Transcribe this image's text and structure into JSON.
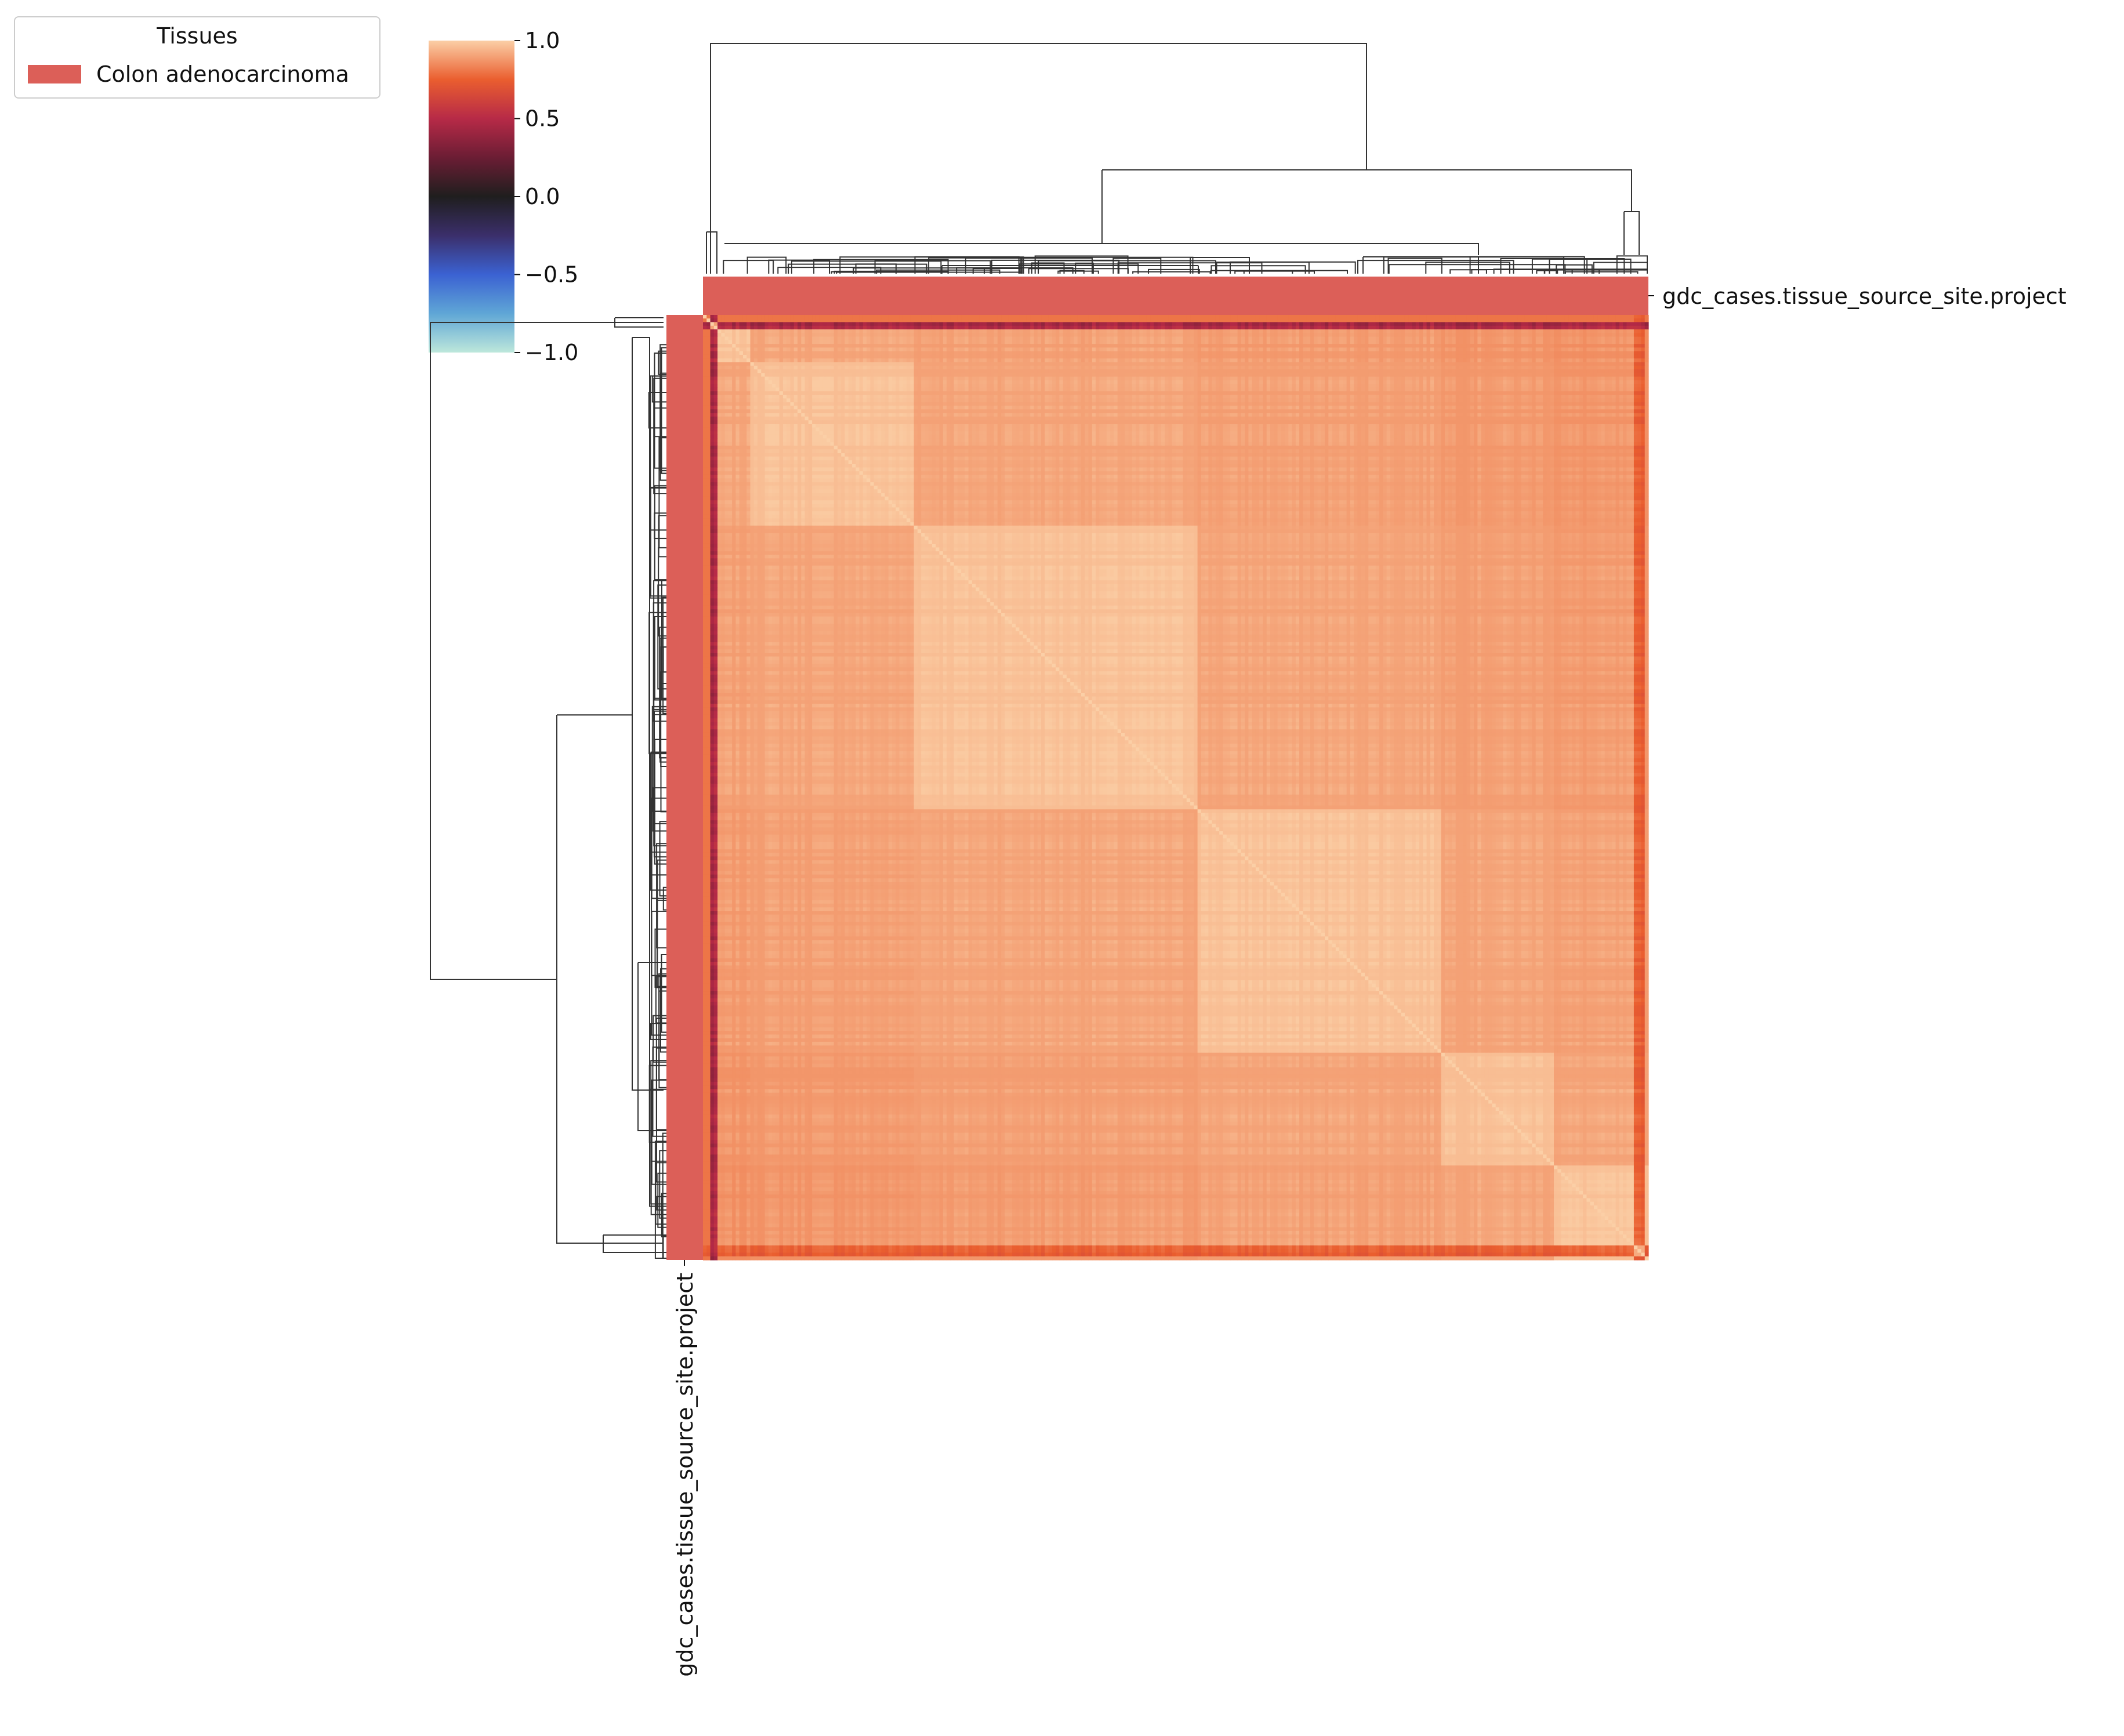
{
  "chart_data": {
    "type": "heatmap",
    "subtype": "clustermap",
    "description_values": {
      "matrix_size": 260,
      "value_range": [
        -1.0,
        1.0
      ]
    },
    "colorbar": {
      "ticks": [
        "1.0",
        "0.5",
        "0.0",
        "−0.5",
        "−1.0"
      ],
      "tick_values": [
        1.0,
        0.5,
        0.0,
        -0.5,
        -1.0
      ],
      "vmin": -1.0,
      "vmax": 1.0,
      "colormap": "icefire",
      "stops": [
        {
          "v": -1.0,
          "color": "#bde7db"
        },
        {
          "v": -0.75,
          "color": "#5fa6d6"
        },
        {
          "v": -0.5,
          "color": "#3b62d2"
        },
        {
          "v": -0.25,
          "color": "#3b2f6b"
        },
        {
          "v": 0.0,
          "color": "#1f1e1e"
        },
        {
          "v": 0.25,
          "color": "#6b1d34"
        },
        {
          "v": 0.5,
          "color": "#b72a47"
        },
        {
          "v": 0.75,
          "color": "#ea5e2f"
        },
        {
          "v": 1.0,
          "color": "#fbcfa6"
        }
      ]
    },
    "row_annotation_label": "gdc_cases.tissue_source_site.project",
    "col_annotation_label": "gdc_cases.tissue_source_site.project",
    "annotation_color": "#dc5f58",
    "legend": {
      "title": "Tissues",
      "entries": [
        {
          "label": "Colon adenocarcinoma",
          "color": "#dc5f58"
        }
      ],
      "placement": "top-left"
    },
    "structure": {
      "body_correlation_range": [
        0.85,
        0.97
      ],
      "outlier_low_first_index_range": [
        0.3,
        0.55
      ],
      "outlier_mid_last_indices_range": [
        0.65,
        0.8
      ]
    }
  }
}
